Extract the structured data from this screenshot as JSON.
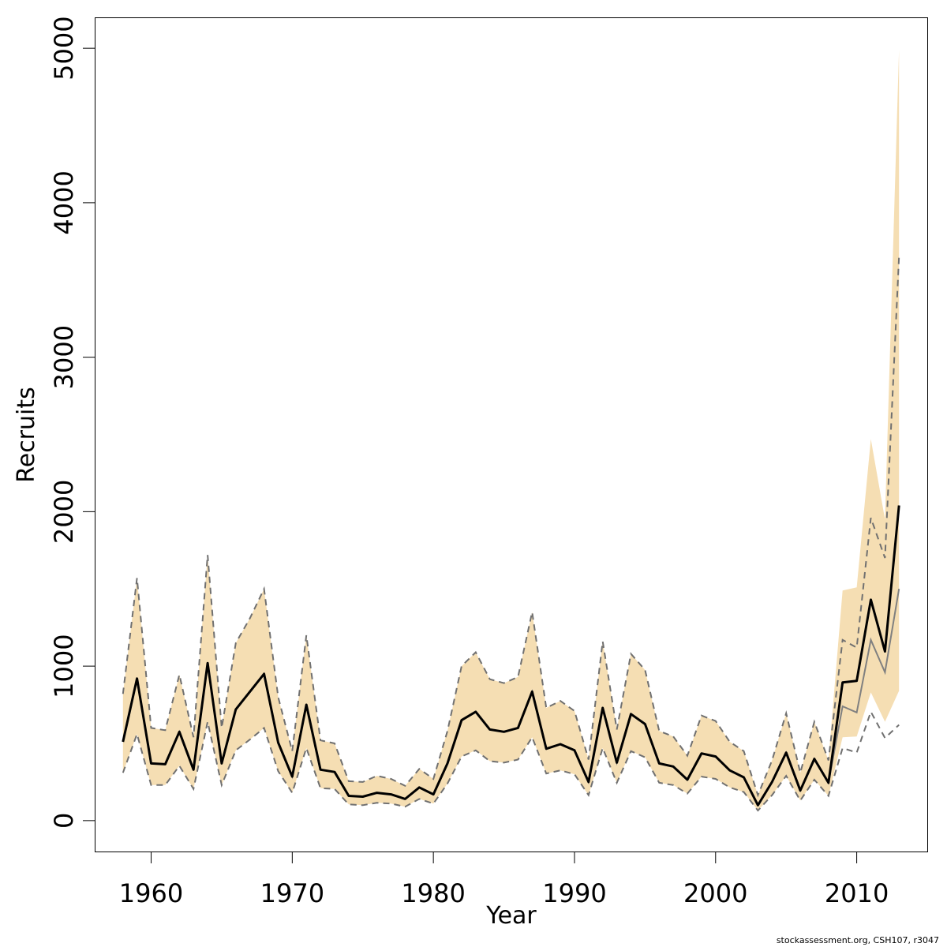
{
  "chart_data": {
    "type": "line",
    "xlabel": "Year",
    "ylabel": "Recruits",
    "xlim": [
      1956,
      2015
    ],
    "ylim": [
      -200,
      5200
    ],
    "xticks": [
      1960,
      1970,
      1980,
      1990,
      2000,
      2010
    ],
    "yticks": [
      0,
      1000,
      2000,
      3000,
      4000,
      5000
    ],
    "grid": false,
    "colors": {
      "band": "#f5deb3",
      "estimate": "#000000",
      "secondary": "#808080",
      "dashed": "#707070"
    },
    "x": [
      1958,
      1959,
      1960,
      1961,
      1962,
      1963,
      1964,
      1965,
      1966,
      1967,
      1968,
      1969,
      1970,
      1971,
      1972,
      1973,
      1974,
      1975,
      1976,
      1977,
      1978,
      1979,
      1980,
      1981,
      1982,
      1983,
      1984,
      1985,
      1986,
      1987,
      1988,
      1989,
      1990,
      1991,
      1992,
      1993,
      1994,
      1995,
      1996,
      1997,
      1998,
      1999,
      2000,
      2001,
      2002,
      2003,
      2004,
      2005,
      2006,
      2007,
      2008,
      2009,
      2010,
      2011,
      2012,
      2013
    ],
    "series": [
      {
        "values": [
          510,
          920,
          370,
          365,
          575,
          330,
          1020,
          370,
          720,
          835,
          950,
          505,
          285,
          750,
          330,
          315,
          160,
          155,
          180,
          170,
          140,
          215,
          170,
          370,
          650,
          705,
          590,
          575,
          600,
          835,
          465,
          495,
          455,
          250,
          730,
          375,
          690,
          625,
          370,
          350,
          265,
          435,
          415,
          325,
          280,
          100,
          250,
          440,
          195,
          400,
          245,
          895,
          905,
          1430,
          1095,
          2040
        ]
      }
    ],
    "band": {
      "lower": [
        310,
        560,
        230,
        230,
        355,
        205,
        640,
        230,
        455,
        525,
        600,
        320,
        180,
        470,
        210,
        205,
        105,
        100,
        115,
        110,
        90,
        140,
        110,
        240,
        415,
        455,
        385,
        375,
        395,
        540,
        305,
        325,
        300,
        165,
        470,
        245,
        450,
        410,
        245,
        230,
        175,
        285,
        270,
        215,
        185,
        65,
        165,
        290,
        130,
        265,
        160,
        540,
        545,
        830,
        640,
        840
      ],
      "upper": [
        820,
        1570,
        600,
        585,
        945,
        540,
        1720,
        600,
        1150,
        1310,
        1500,
        800,
        450,
        1200,
        520,
        500,
        255,
        250,
        290,
        270,
        225,
        335,
        270,
        580,
        1000,
        1090,
        915,
        890,
        930,
        1350,
        730,
        775,
        710,
        395,
        1160,
        590,
        1080,
        975,
        580,
        545,
        420,
        680,
        645,
        510,
        450,
        165,
        390,
        695,
        310,
        640,
        390,
        1490,
        1510,
        2470,
        1950,
        4990
      ]
    },
    "secondary": {
      "mid": [
        510,
        920,
        370,
        365,
        575,
        330,
        1020,
        370,
        720,
        835,
        950,
        505,
        285,
        750,
        330,
        315,
        160,
        155,
        180,
        170,
        140,
        215,
        170,
        370,
        650,
        705,
        590,
        575,
        600,
        835,
        465,
        495,
        455,
        250,
        730,
        375,
        690,
        625,
        370,
        350,
        265,
        435,
        415,
        325,
        280,
        100,
        250,
        440,
        195,
        400,
        245,
        740,
        700,
        1170,
        960,
        1500
      ],
      "lower": [
        310,
        560,
        230,
        230,
        355,
        205,
        640,
        230,
        455,
        525,
        600,
        320,
        180,
        470,
        210,
        205,
        105,
        100,
        115,
        110,
        90,
        140,
        110,
        240,
        415,
        455,
        385,
        375,
        395,
        540,
        305,
        325,
        300,
        165,
        470,
        245,
        450,
        410,
        245,
        230,
        175,
        285,
        270,
        215,
        185,
        65,
        165,
        290,
        130,
        265,
        160,
        470,
        440,
        705,
        535,
        620
      ],
      "upper": [
        820,
        1570,
        600,
        585,
        945,
        540,
        1720,
        600,
        1150,
        1310,
        1500,
        800,
        450,
        1200,
        520,
        500,
        255,
        250,
        290,
        270,
        225,
        335,
        270,
        580,
        1000,
        1090,
        915,
        890,
        930,
        1350,
        730,
        775,
        710,
        395,
        1160,
        590,
        1080,
        975,
        580,
        545,
        420,
        680,
        645,
        510,
        450,
        165,
        390,
        695,
        310,
        640,
        390,
        1170,
        1120,
        1960,
        1700,
        3650
      ]
    }
  },
  "footer": {
    "credit": "stockassessment.org, CSH107, r3047"
  }
}
